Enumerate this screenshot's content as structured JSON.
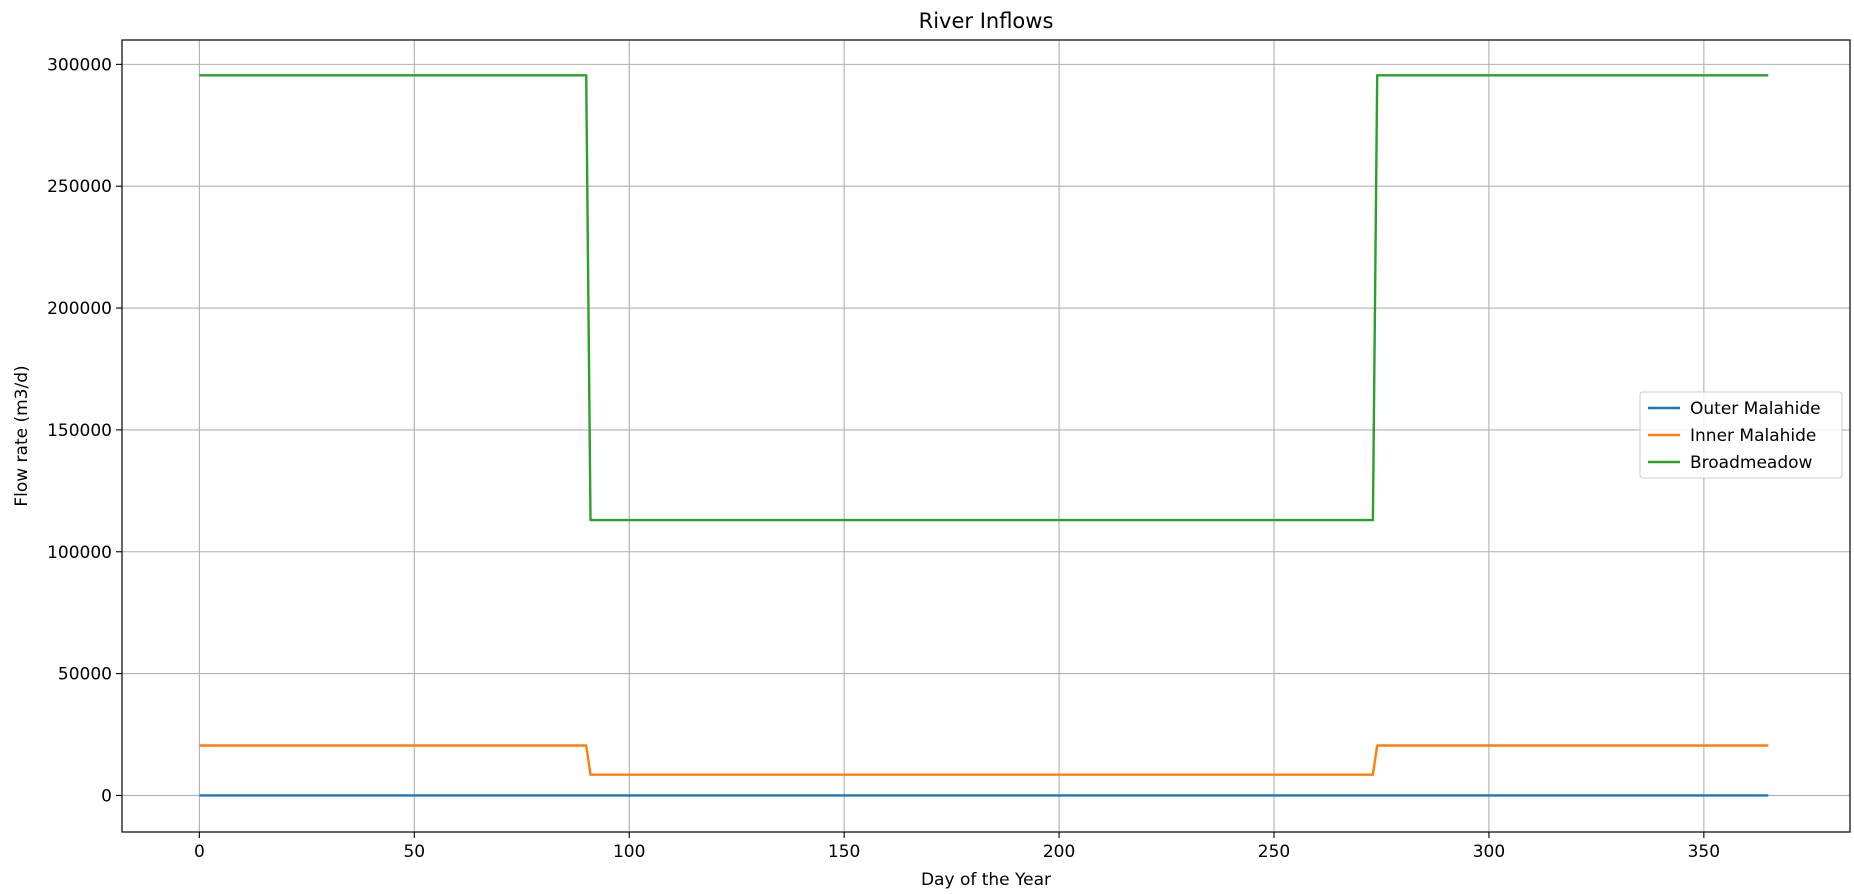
{
  "chart_data": {
    "type": "line",
    "title": "River Inflows",
    "xlabel": "Day of the Year",
    "ylabel": "Flow rate (m3/d)",
    "xlim": [
      -18,
      384
    ],
    "ylim": [
      -15000,
      310000
    ],
    "xticks": [
      0,
      50,
      100,
      150,
      200,
      250,
      300,
      350
    ],
    "yticks": [
      0,
      50000,
      100000,
      150000,
      200000,
      250000,
      300000
    ],
    "grid": true,
    "legend_position": "center-right",
    "series": [
      {
        "name": "Outer Malahide",
        "color": "#1f77b4",
        "x": [
          0,
          365
        ],
        "y": [
          0,
          0
        ]
      },
      {
        "name": "Inner Malahide",
        "color": "#ff7f0e",
        "x": [
          0,
          90,
          91,
          273,
          274,
          365
        ],
        "y": [
          20500,
          20500,
          8500,
          8500,
          20500,
          20500
        ]
      },
      {
        "name": "Broadmeadow",
        "color": "#2ca02c",
        "x": [
          0,
          90,
          91,
          273,
          274,
          365
        ],
        "y": [
          295500,
          295500,
          113000,
          113000,
          295500,
          295500
        ]
      }
    ]
  }
}
